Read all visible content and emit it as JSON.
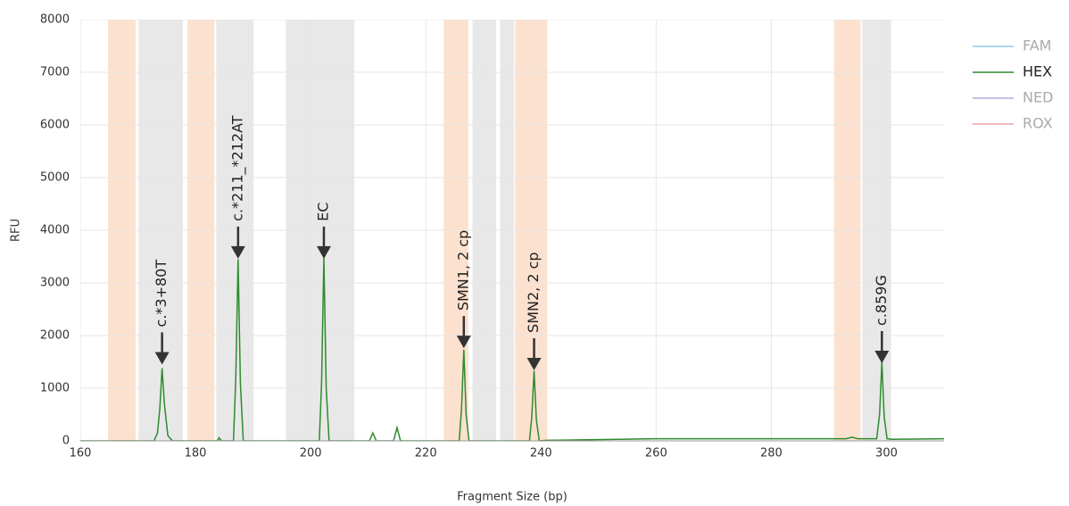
{
  "chart_data": {
    "type": "line",
    "xlabel": "Fragment Size (bp)",
    "ylabel": "RFU",
    "xlim": [
      160,
      310
    ],
    "ylim": [
      0,
      8000
    ],
    "xticks": [
      160,
      180,
      200,
      220,
      240,
      260,
      280,
      300
    ],
    "yticks": [
      0,
      1000,
      2000,
      3000,
      4000,
      5000,
      6000,
      7000,
      8000
    ],
    "grid": true,
    "legend": "right",
    "regions": [
      {
        "start": 164.8,
        "end": 169.6,
        "color": "#fde1cf"
      },
      {
        "start": 170.1,
        "end": 177.8,
        "color": "#e8e8e8"
      },
      {
        "start": 178.6,
        "end": 183.3,
        "color": "#fde1cf"
      },
      {
        "start": 183.6,
        "end": 190.1,
        "color": "#e8e8e8"
      },
      {
        "start": 195.7,
        "end": 207.6,
        "color": "#e8e8e8"
      },
      {
        "start": 223.1,
        "end": 227.4,
        "color": "#fde1cf"
      },
      {
        "start": 228.1,
        "end": 232.2,
        "color": "#e8e8e8"
      },
      {
        "start": 232.9,
        "end": 235.3,
        "color": "#e8e8e8"
      },
      {
        "start": 235.5,
        "end": 241.1,
        "color": "#fde1cf"
      },
      {
        "start": 290.9,
        "end": 295.5,
        "color": "#fde1cf"
      },
      {
        "start": 295.8,
        "end": 300.8,
        "color": "#e8e8e8"
      }
    ],
    "x": [
      160,
      172.8,
      173.4,
      173.8,
      174.2,
      174.6,
      175.2,
      176,
      183.8,
      184.1,
      184.5,
      186.6,
      187.0,
      187.4,
      187.8,
      188.3,
      201.5,
      201.9,
      202.3,
      202.7,
      203.2,
      210.2,
      210.8,
      211.4,
      214.4,
      215,
      215.6,
      225.8,
      226.2,
      226.6,
      227,
      227.5,
      238,
      238.4,
      238.8,
      239.2,
      239.7,
      241,
      260,
      280,
      293,
      294,
      295,
      298.3,
      298.8,
      299.2,
      299.6,
      300.1,
      301,
      310
    ],
    "series": [
      {
        "name": "FAM",
        "color": "#8ec9e8",
        "visible": false
      },
      {
        "name": "HEX",
        "color": "#2e8b2e",
        "visible": true,
        "values": [
          0,
          0,
          150,
          600,
          1380,
          700,
          100,
          0,
          0,
          60,
          0,
          0,
          1200,
          3450,
          1100,
          0,
          0,
          1100,
          3480,
          1000,
          0,
          0,
          150,
          0,
          0,
          250,
          0,
          0,
          600,
          1730,
          500,
          0,
          0,
          450,
          1330,
          400,
          0,
          10,
          40,
          40,
          40,
          70,
          40,
          40,
          500,
          1500,
          450,
          40,
          30,
          40
        ]
      },
      {
        "name": "NED",
        "color": "#b9a8d6",
        "visible": false
      },
      {
        "name": "ROX",
        "color": "#e8a0a8",
        "visible": false
      }
    ],
    "annotations": [
      {
        "text": "c.*3+80T",
        "x": 174.2,
        "y": 1450
      },
      {
        "text": "c.*211_*212AT",
        "x": 187.4,
        "y": 3460
      },
      {
        "text": "EC",
        "x": 202.3,
        "y": 3460
      },
      {
        "text": "SMN1, 2 cp",
        "x": 226.6,
        "y": 1760
      },
      {
        "text": "SMN2, 2 cp",
        "x": 238.8,
        "y": 1340
      },
      {
        "text": "c.859G",
        "x": 299.2,
        "y": 1475
      }
    ]
  }
}
